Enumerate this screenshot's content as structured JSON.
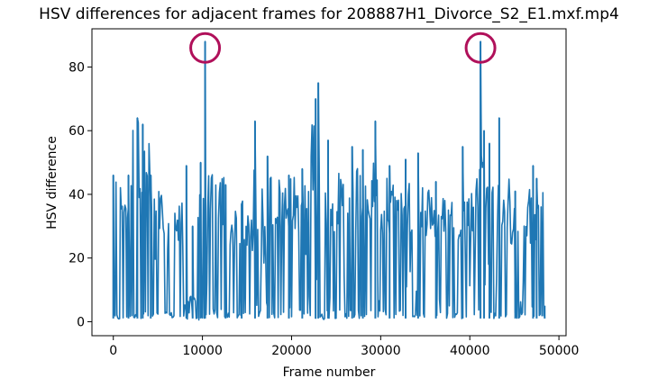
{
  "chart_data": {
    "type": "line",
    "title": "HSV differences for adjacent frames for 208887H1_Divorce_S2_E1.mxf.mp4",
    "xlabel": "Frame number",
    "ylabel": "HSV difference",
    "xlim": [
      -2400,
      50800
    ],
    "ylim": [
      -4.4,
      92
    ],
    "xticks": [
      0,
      10000,
      20000,
      30000,
      40000,
      50000
    ],
    "xtick_labels": [
      "0",
      "10000",
      "20000",
      "30000",
      "40000",
      "50000"
    ],
    "yticks": [
      0,
      20,
      40,
      60,
      80
    ],
    "ytick_labels": [
      "0",
      "20",
      "40",
      "60",
      "80"
    ],
    "grid": false,
    "series": [
      {
        "color": "#1f77b4",
        "segments": [
          {
            "x0": 0,
            "x1": 1500,
            "low": 0.5,
            "high": 46,
            "base": 2
          },
          {
            "x0": 1500,
            "x1": 2200,
            "low": 1,
            "high": 45,
            "base": 3
          },
          {
            "x0": 2200,
            "x1": 3200,
            "low": 1,
            "high": 64,
            "base": 3
          },
          {
            "x0": 3200,
            "x1": 4300,
            "low": 1,
            "high": 57,
            "base": 3
          },
          {
            "x0": 4300,
            "x1": 5500,
            "low": 1,
            "high": 42,
            "base": 2
          },
          {
            "x0": 5500,
            "x1": 6800,
            "low": 1,
            "high": 38,
            "base": 2
          },
          {
            "x0": 6800,
            "x1": 8000,
            "low": 1,
            "high": 39,
            "base": 2
          },
          {
            "x0": 8000,
            "x1": 9500,
            "low": 0.5,
            "high": 8,
            "base": 1
          },
          {
            "x0": 9500,
            "x1": 10400,
            "low": 0.5,
            "high": 50,
            "base": 2
          },
          {
            "x0": 10400,
            "x1": 12500,
            "low": 1,
            "high": 47,
            "base": 3
          },
          {
            "x0": 12500,
            "x1": 15500,
            "low": 1,
            "high": 38,
            "base": 2
          },
          {
            "x0": 15500,
            "x1": 18000,
            "low": 1,
            "high": 48,
            "base": 5
          },
          {
            "x0": 18000,
            "x1": 22000,
            "low": 1,
            "high": 46,
            "base": 3
          },
          {
            "x0": 22000,
            "x1": 24000,
            "low": 0.5,
            "high": 66,
            "base": 2
          },
          {
            "x0": 24000,
            "x1": 27000,
            "low": 1,
            "high": 47,
            "base": 3
          },
          {
            "x0": 27000,
            "x1": 30000,
            "low": 1,
            "high": 50,
            "base": 3
          },
          {
            "x0": 30000,
            "x1": 33000,
            "low": 1,
            "high": 47,
            "base": 3
          },
          {
            "x0": 33000,
            "x1": 36000,
            "low": 1,
            "high": 44,
            "base": 2
          },
          {
            "x0": 36000,
            "x1": 38500,
            "low": 1,
            "high": 40,
            "base": 2
          },
          {
            "x0": 38500,
            "x1": 40500,
            "low": 1,
            "high": 42,
            "base": 2
          },
          {
            "x0": 40500,
            "x1": 42500,
            "low": 1,
            "high": 58,
            "base": 3
          },
          {
            "x0": 42500,
            "x1": 44500,
            "low": 1,
            "high": 47,
            "base": 2
          },
          {
            "x0": 44500,
            "x1": 46500,
            "low": 1,
            "high": 40,
            "base": 2
          },
          {
            "x0": 46500,
            "x1": 48400,
            "low": 1,
            "high": 42,
            "base": 2
          }
        ],
        "spikes": [
          {
            "x": 10300,
            "y": 88
          },
          {
            "x": 41200,
            "y": 88
          },
          {
            "x": 23000,
            "y": 75
          },
          {
            "x": 22700,
            "y": 70
          },
          {
            "x": 43300,
            "y": 64
          },
          {
            "x": 2700,
            "y": 64
          },
          {
            "x": 15900,
            "y": 63
          },
          {
            "x": 29400,
            "y": 63
          },
          {
            "x": 41600,
            "y": 60
          },
          {
            "x": 3300,
            "y": 62
          },
          {
            "x": 24100,
            "y": 57
          },
          {
            "x": 42200,
            "y": 56
          },
          {
            "x": 26800,
            "y": 55
          },
          {
            "x": 39200,
            "y": 55
          },
          {
            "x": 28000,
            "y": 54
          },
          {
            "x": 34200,
            "y": 53
          },
          {
            "x": 17300,
            "y": 52
          },
          {
            "x": 8200,
            "y": 49
          },
          {
            "x": 9800,
            "y": 50
          },
          {
            "x": 47100,
            "y": 49
          },
          {
            "x": 31000,
            "y": 49
          },
          {
            "x": 19700,
            "y": 46
          },
          {
            "x": 0,
            "y": 46
          },
          {
            "x": 1700,
            "y": 46
          },
          {
            "x": 4200,
            "y": 46
          },
          {
            "x": 47500,
            "y": 45
          },
          {
            "x": 12600,
            "y": 43
          },
          {
            "x": 21200,
            "y": 48
          },
          {
            "x": 36200,
            "y": 44
          },
          {
            "x": 32800,
            "y": 51
          },
          {
            "x": 14400,
            "y": 37
          },
          {
            "x": 45100,
            "y": 41
          },
          {
            "x": 8900,
            "y": 30
          },
          {
            "x": 48400,
            "y": 5
          }
        ]
      }
    ],
    "annotations": [
      {
        "type": "circle",
        "x": 10300,
        "y": 86,
        "color": "#b0105a"
      },
      {
        "type": "circle",
        "x": 41200,
        "y": 86,
        "color": "#b0105a"
      }
    ]
  }
}
